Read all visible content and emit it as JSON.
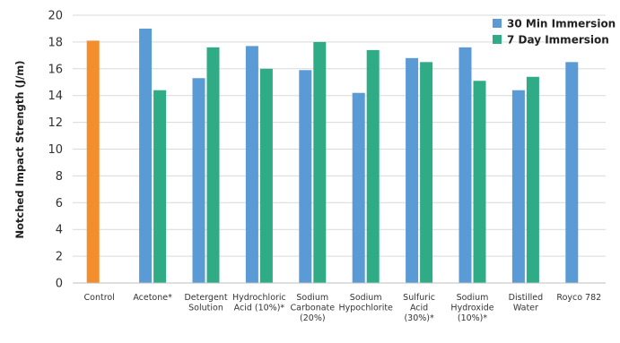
{
  "chart_data": {
    "type": "bar",
    "title": "",
    "xlabel": "",
    "ylabel": "Notched Impact Strength (J/m)",
    "ylim": [
      0,
      20
    ],
    "yticks": [
      0,
      2,
      4,
      6,
      8,
      10,
      12,
      14,
      16,
      18,
      20
    ],
    "grid": true,
    "legend_position": "top-right",
    "categories": [
      [
        "Control"
      ],
      [
        "Acetone*"
      ],
      [
        "Detergent",
        "Solution"
      ],
      [
        "Hydrochloric",
        "Acid (10%)*"
      ],
      [
        "Sodium",
        "Carbonate",
        "(20%)"
      ],
      [
        "Sodium",
        "Hypochlorite"
      ],
      [
        "Sulfuric",
        "Acid",
        "(30%)*"
      ],
      [
        "Sodium",
        "Hydroxide",
        "(10%)*"
      ],
      [
        "Distilled",
        "Water"
      ],
      [
        "Royco 782"
      ]
    ],
    "control": {
      "value": 18.1,
      "color": "#f28e2b"
    },
    "series": [
      {
        "name": "30 Min Immersion",
        "color": "#5b9bd5",
        "values": [
          null,
          19.0,
          15.3,
          17.7,
          15.9,
          14.2,
          16.8,
          17.6,
          14.4,
          16.5
        ]
      },
      {
        "name": "7 Day Immersion",
        "color": "#2fac86",
        "values": [
          null,
          14.4,
          17.6,
          16.0,
          18.0,
          17.4,
          16.5,
          15.1,
          15.4,
          null
        ]
      }
    ]
  }
}
